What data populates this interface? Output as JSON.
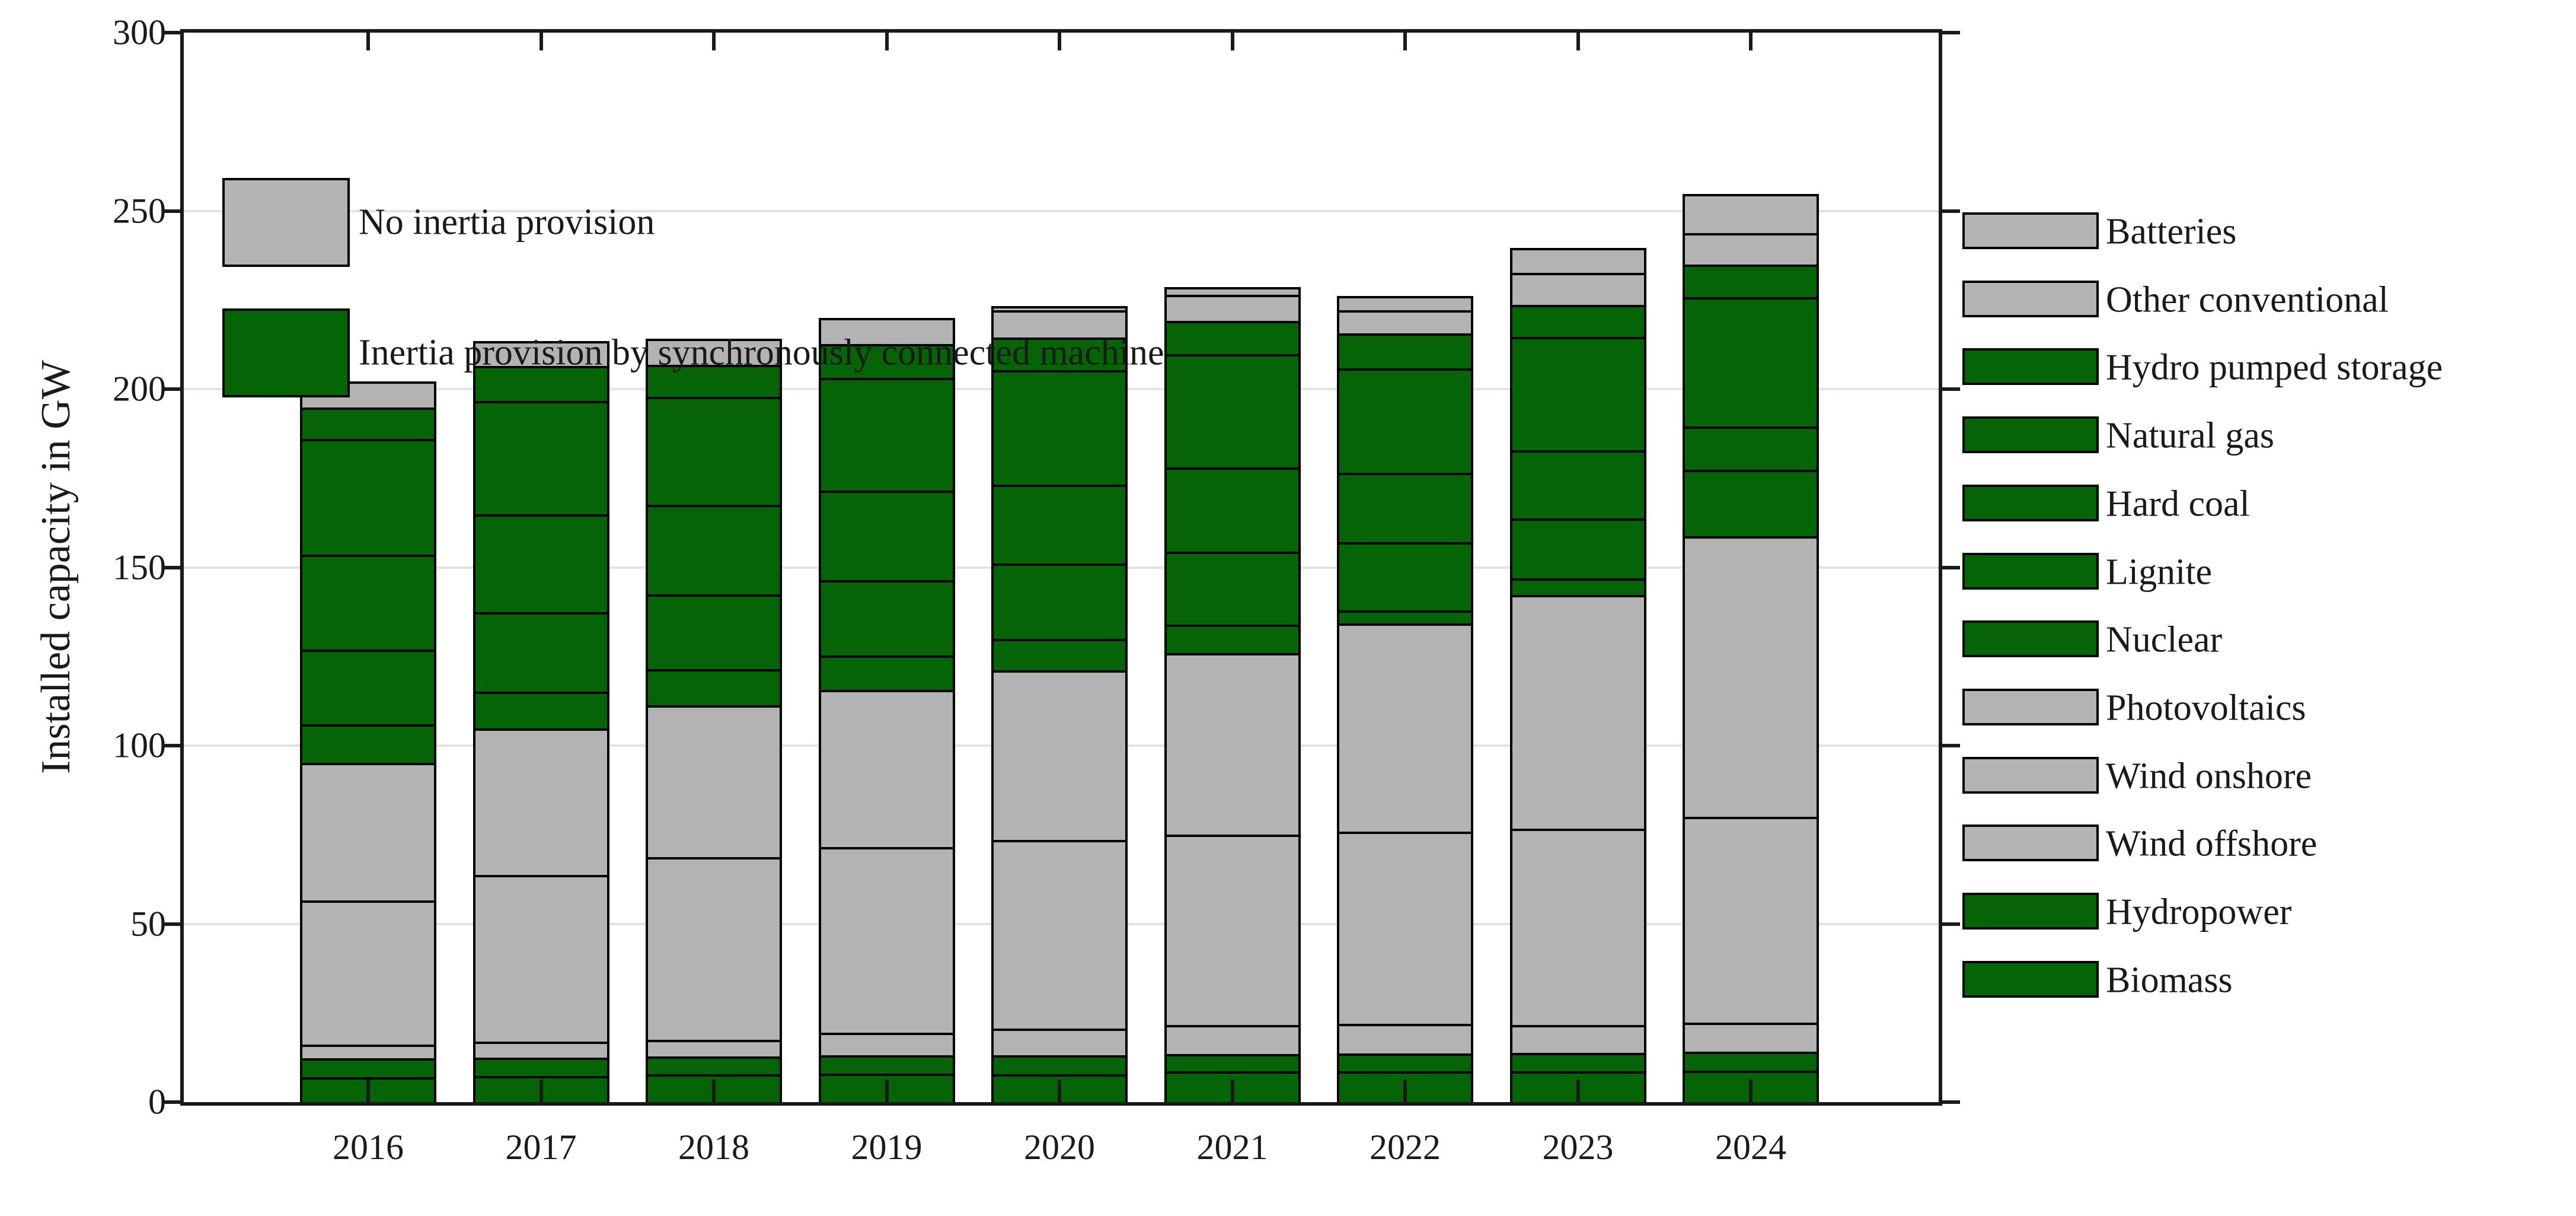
{
  "chart_data": {
    "type": "bar",
    "stacked": true,
    "title": "",
    "xlabel": "",
    "ylabel": "Installed capacity in GW",
    "ylim": [
      0,
      300
    ],
    "ytick_values": [
      0,
      50,
      100,
      150,
      200,
      250,
      300
    ],
    "ytick_labels": [
      "0",
      "50",
      "100",
      "150",
      "200",
      "250",
      "300"
    ],
    "categories": [
      "2016",
      "2017",
      "2018",
      "2019",
      "2020",
      "2021",
      "2022",
      "2023",
      "2024"
    ],
    "grid": "horizontal",
    "units": "GW",
    "stack_order_bottom_to_top": [
      "Biomass",
      "Hydropower",
      "Wind offshore",
      "Wind onshore",
      "Photovoltaics",
      "Nuclear",
      "Lignite",
      "Hard coal",
      "Natural gas",
      "Hydro pumped storage",
      "Other conventional",
      "Batteries"
    ],
    "series": [
      {
        "name": "Batteries",
        "group": "no_inertia",
        "values": [
          0.0,
          0.0,
          0.0,
          0.0,
          1.1,
          2.3,
          3.9,
          7.0,
          11.1
        ]
      },
      {
        "name": "Other conventional",
        "group": "no_inertia",
        "values": [
          7.3,
          7.0,
          7.3,
          7.3,
          7.7,
          7.2,
          6.6,
          9.0,
          8.7
        ]
      },
      {
        "name": "Hydro pumped storage",
        "group": "inertia",
        "values": [
          8.8,
          9.9,
          9.1,
          9.5,
          9.2,
          9.4,
          9.8,
          9.0,
          9.2
        ]
      },
      {
        "name": "Natural gas",
        "group": "inertia",
        "values": [
          32.5,
          31.7,
          30.2,
          31.6,
          32.1,
          31.7,
          29.2,
          31.8,
          36.3
        ]
      },
      {
        "name": "Hard coal",
        "group": "inertia",
        "values": [
          26.5,
          27.5,
          25.2,
          25.1,
          22.1,
          23.7,
          19.6,
          19.0,
          12.2
        ]
      },
      {
        "name": "Lignite",
        "group": "inertia",
        "values": [
          21.0,
          22.2,
          20.9,
          21.2,
          21.2,
          20.4,
          19.1,
          16.8,
          18.6
        ]
      },
      {
        "name": "Nuclear",
        "group": "inertia",
        "values": [
          10.8,
          10.4,
          10.2,
          9.7,
          8.8,
          8.1,
          3.7,
          4.7,
          0.0
        ]
      },
      {
        "name": "Photovoltaics",
        "group": "no_inertia",
        "values": [
          38.6,
          41.0,
          42.5,
          44.1,
          47.5,
          50.8,
          58.3,
          65.6,
          78.6
        ]
      },
      {
        "name": "Wind onshore",
        "group": "no_inertia",
        "values": [
          40.4,
          46.8,
          51.4,
          52.1,
          53.0,
          53.4,
          53.9,
          55.0,
          57.8
        ]
      },
      {
        "name": "Wind offshore",
        "group": "no_inertia",
        "values": [
          3.9,
          4.6,
          4.6,
          6.2,
          7.5,
          8.2,
          8.3,
          7.9,
          8.2
        ]
      },
      {
        "name": "Hydropower",
        "group": "inertia",
        "values": [
          5.3,
          5.0,
          5.0,
          5.2,
          5.2,
          4.9,
          5.1,
          5.2,
          5.2
        ]
      },
      {
        "name": "Biomass",
        "group": "inertia",
        "values": [
          7.0,
          7.4,
          7.8,
          8.0,
          7.9,
          8.6,
          8.6,
          8.6,
          8.9
        ]
      }
    ],
    "totals": [
      202.1,
      213.5,
      214.2,
      220.0,
      223.3,
      228.7,
      226.1,
      239.6,
      254.9
    ]
  },
  "inertia_legend": {
    "position": "top-left-inside-plot",
    "items": [
      {
        "label": "No inertia provision",
        "group": "no_inertia"
      },
      {
        "label": "Inertia provision by synchronously connected machine",
        "group": "inertia"
      }
    ]
  },
  "tech_legend": {
    "position": "right-outside-plot",
    "items": [
      {
        "label": "Batteries",
        "group": "no_inertia"
      },
      {
        "label": "Other conventional",
        "group": "no_inertia"
      },
      {
        "label": "Hydro pumped storage",
        "group": "inertia"
      },
      {
        "label": "Natural gas",
        "group": "inertia"
      },
      {
        "label": "Hard coal",
        "group": "inertia"
      },
      {
        "label": "Lignite",
        "group": "inertia"
      },
      {
        "label": "Nuclear",
        "group": "inertia"
      },
      {
        "label": "Photovoltaics",
        "group": "no_inertia"
      },
      {
        "label": "Wind onshore",
        "group": "no_inertia"
      },
      {
        "label": "Wind offshore",
        "group": "no_inertia"
      },
      {
        "label": "Hydropower",
        "group": "inertia"
      },
      {
        "label": "Biomass",
        "group": "inertia"
      }
    ]
  },
  "colors": {
    "no_inertia": "#b3b3b3",
    "inertia": "#056405",
    "segment_border": "#000000",
    "gridline": "#e3e3e3",
    "axis": "#1a1a1a",
    "background": "#ffffff"
  }
}
